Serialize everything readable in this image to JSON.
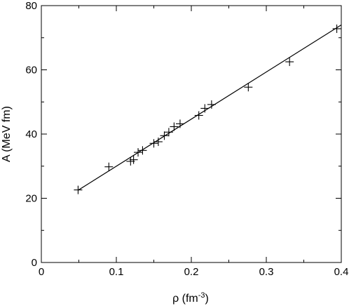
{
  "chart_data": {
    "type": "scatter",
    "title": "",
    "xlabel": "ρ (fm",
    "xlabel_sup": "-3",
    "xlabel_close": ")",
    "ylabel": "A (MeV fm)",
    "xlim": [
      0,
      0.4
    ],
    "ylim": [
      0,
      80
    ],
    "x_ticks": [
      0,
      0.1,
      0.2,
      0.3,
      0.4
    ],
    "x_tick_labels": [
      "0",
      "0.1",
      "0.2",
      "0.3",
      "0.4"
    ],
    "y_ticks": [
      0,
      20,
      40,
      60,
      80
    ],
    "y_tick_labels": [
      "0",
      "20",
      "40",
      "60",
      "80"
    ],
    "grid": false,
    "marker": "plus",
    "points": [
      {
        "x": 0.049,
        "y": 22.6
      },
      {
        "x": 0.09,
        "y": 29.8
      },
      {
        "x": 0.119,
        "y": 31.5
      },
      {
        "x": 0.123,
        "y": 32.0
      },
      {
        "x": 0.129,
        "y": 34.3
      },
      {
        "x": 0.135,
        "y": 34.9
      },
      {
        "x": 0.15,
        "y": 37.1
      },
      {
        "x": 0.156,
        "y": 37.6
      },
      {
        "x": 0.164,
        "y": 39.5
      },
      {
        "x": 0.17,
        "y": 40.6
      },
      {
        "x": 0.177,
        "y": 42.3
      },
      {
        "x": 0.185,
        "y": 43.2
      },
      {
        "x": 0.21,
        "y": 45.8
      },
      {
        "x": 0.218,
        "y": 48.0
      },
      {
        "x": 0.227,
        "y": 49.2
      },
      {
        "x": 0.276,
        "y": 54.6
      },
      {
        "x": 0.331,
        "y": 62.5
      },
      {
        "x": 0.394,
        "y": 72.8
      }
    ],
    "fit_line": {
      "x": [
        0.049,
        0.4
      ],
      "y": [
        22.5,
        74.0
      ]
    }
  }
}
